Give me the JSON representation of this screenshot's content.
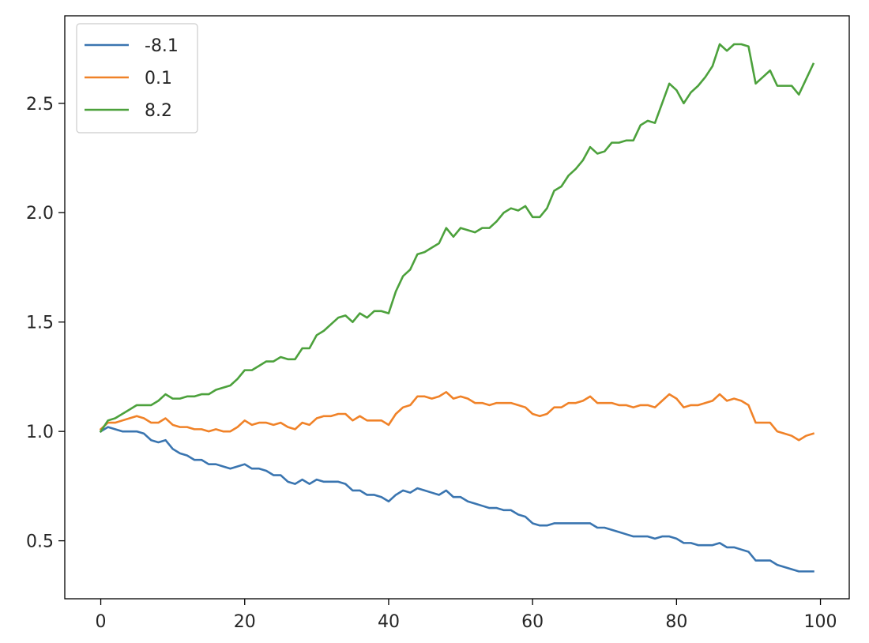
{
  "chart_data": {
    "type": "line",
    "title": "",
    "xlabel": "",
    "ylabel": "",
    "xlim": [
      -5,
      104
    ],
    "ylim": [
      0.235,
      2.9
    ],
    "grid": false,
    "legend_position": "top-left",
    "x_ticks": [
      0,
      20,
      40,
      60,
      80,
      100
    ],
    "y_ticks": [
      0.5,
      1.0,
      1.5,
      2.0,
      2.5
    ],
    "x_tick_labels": [
      "0",
      "20",
      "40",
      "60",
      "80",
      "100"
    ],
    "y_tick_labels": [
      "0.5",
      "1.0",
      "1.5",
      "2.0",
      "2.5"
    ],
    "x_start": 0,
    "series": [
      {
        "name": "-8.1",
        "color": "#3a75b0",
        "values": [
          1.0,
          1.02,
          1.01,
          1.0,
          1.0,
          1.0,
          0.99,
          0.96,
          0.95,
          0.96,
          0.92,
          0.9,
          0.89,
          0.87,
          0.87,
          0.85,
          0.85,
          0.84,
          0.83,
          0.84,
          0.85,
          0.83,
          0.83,
          0.82,
          0.8,
          0.8,
          0.77,
          0.76,
          0.78,
          0.76,
          0.78,
          0.77,
          0.77,
          0.77,
          0.76,
          0.73,
          0.73,
          0.71,
          0.71,
          0.7,
          0.68,
          0.71,
          0.73,
          0.72,
          0.74,
          0.73,
          0.72,
          0.71,
          0.73,
          0.7,
          0.7,
          0.68,
          0.67,
          0.66,
          0.65,
          0.65,
          0.64,
          0.64,
          0.62,
          0.61,
          0.58,
          0.57,
          0.57,
          0.58,
          0.58,
          0.58,
          0.58,
          0.58,
          0.58,
          0.56,
          0.56,
          0.55,
          0.54,
          0.53,
          0.52,
          0.52,
          0.52,
          0.51,
          0.52,
          0.52,
          0.51,
          0.49,
          0.49,
          0.48,
          0.48,
          0.48,
          0.49,
          0.47,
          0.47,
          0.46,
          0.45,
          0.41,
          0.41,
          0.41,
          0.39,
          0.38,
          0.37,
          0.36,
          0.36,
          0.36
        ]
      },
      {
        "name": "0.1",
        "color": "#f08228",
        "values": [
          1.01,
          1.04,
          1.04,
          1.05,
          1.06,
          1.07,
          1.06,
          1.04,
          1.04,
          1.06,
          1.03,
          1.02,
          1.02,
          1.01,
          1.01,
          1.0,
          1.01,
          1.0,
          1.0,
          1.02,
          1.05,
          1.03,
          1.04,
          1.04,
          1.03,
          1.04,
          1.02,
          1.01,
          1.04,
          1.03,
          1.06,
          1.07,
          1.07,
          1.08,
          1.08,
          1.05,
          1.07,
          1.05,
          1.05,
          1.05,
          1.03,
          1.08,
          1.11,
          1.12,
          1.16,
          1.16,
          1.15,
          1.16,
          1.18,
          1.15,
          1.16,
          1.15,
          1.13,
          1.13,
          1.12,
          1.13,
          1.13,
          1.13,
          1.12,
          1.11,
          1.08,
          1.07,
          1.08,
          1.11,
          1.11,
          1.13,
          1.13,
          1.14,
          1.16,
          1.13,
          1.13,
          1.13,
          1.12,
          1.12,
          1.11,
          1.12,
          1.12,
          1.11,
          1.14,
          1.17,
          1.15,
          1.11,
          1.12,
          1.12,
          1.13,
          1.14,
          1.17,
          1.14,
          1.15,
          1.14,
          1.12,
          1.04,
          1.04,
          1.04,
          1.0,
          0.99,
          0.98,
          0.96,
          0.98,
          0.99
        ]
      },
      {
        "name": "8.2",
        "color": "#4ca13c",
        "values": [
          1.0,
          1.05,
          1.06,
          1.08,
          1.1,
          1.12,
          1.12,
          1.12,
          1.14,
          1.17,
          1.15,
          1.15,
          1.16,
          1.16,
          1.17,
          1.17,
          1.19,
          1.2,
          1.21,
          1.24,
          1.28,
          1.28,
          1.3,
          1.32,
          1.32,
          1.34,
          1.33,
          1.33,
          1.38,
          1.38,
          1.44,
          1.46,
          1.49,
          1.52,
          1.53,
          1.5,
          1.54,
          1.52,
          1.55,
          1.55,
          1.54,
          1.64,
          1.71,
          1.74,
          1.81,
          1.82,
          1.84,
          1.86,
          1.93,
          1.89,
          1.93,
          1.92,
          1.91,
          1.93,
          1.93,
          1.96,
          2.0,
          2.02,
          2.01,
          2.03,
          1.98,
          1.98,
          2.02,
          2.1,
          2.12,
          2.17,
          2.2,
          2.24,
          2.3,
          2.27,
          2.28,
          2.32,
          2.32,
          2.33,
          2.33,
          2.4,
          2.42,
          2.41,
          2.5,
          2.59,
          2.56,
          2.5,
          2.55,
          2.58,
          2.62,
          2.67,
          2.77,
          2.74,
          2.77,
          2.77,
          2.76,
          2.59,
          2.62,
          2.65,
          2.58,
          2.58,
          2.58,
          2.54,
          2.61,
          2.68
        ]
      }
    ]
  }
}
